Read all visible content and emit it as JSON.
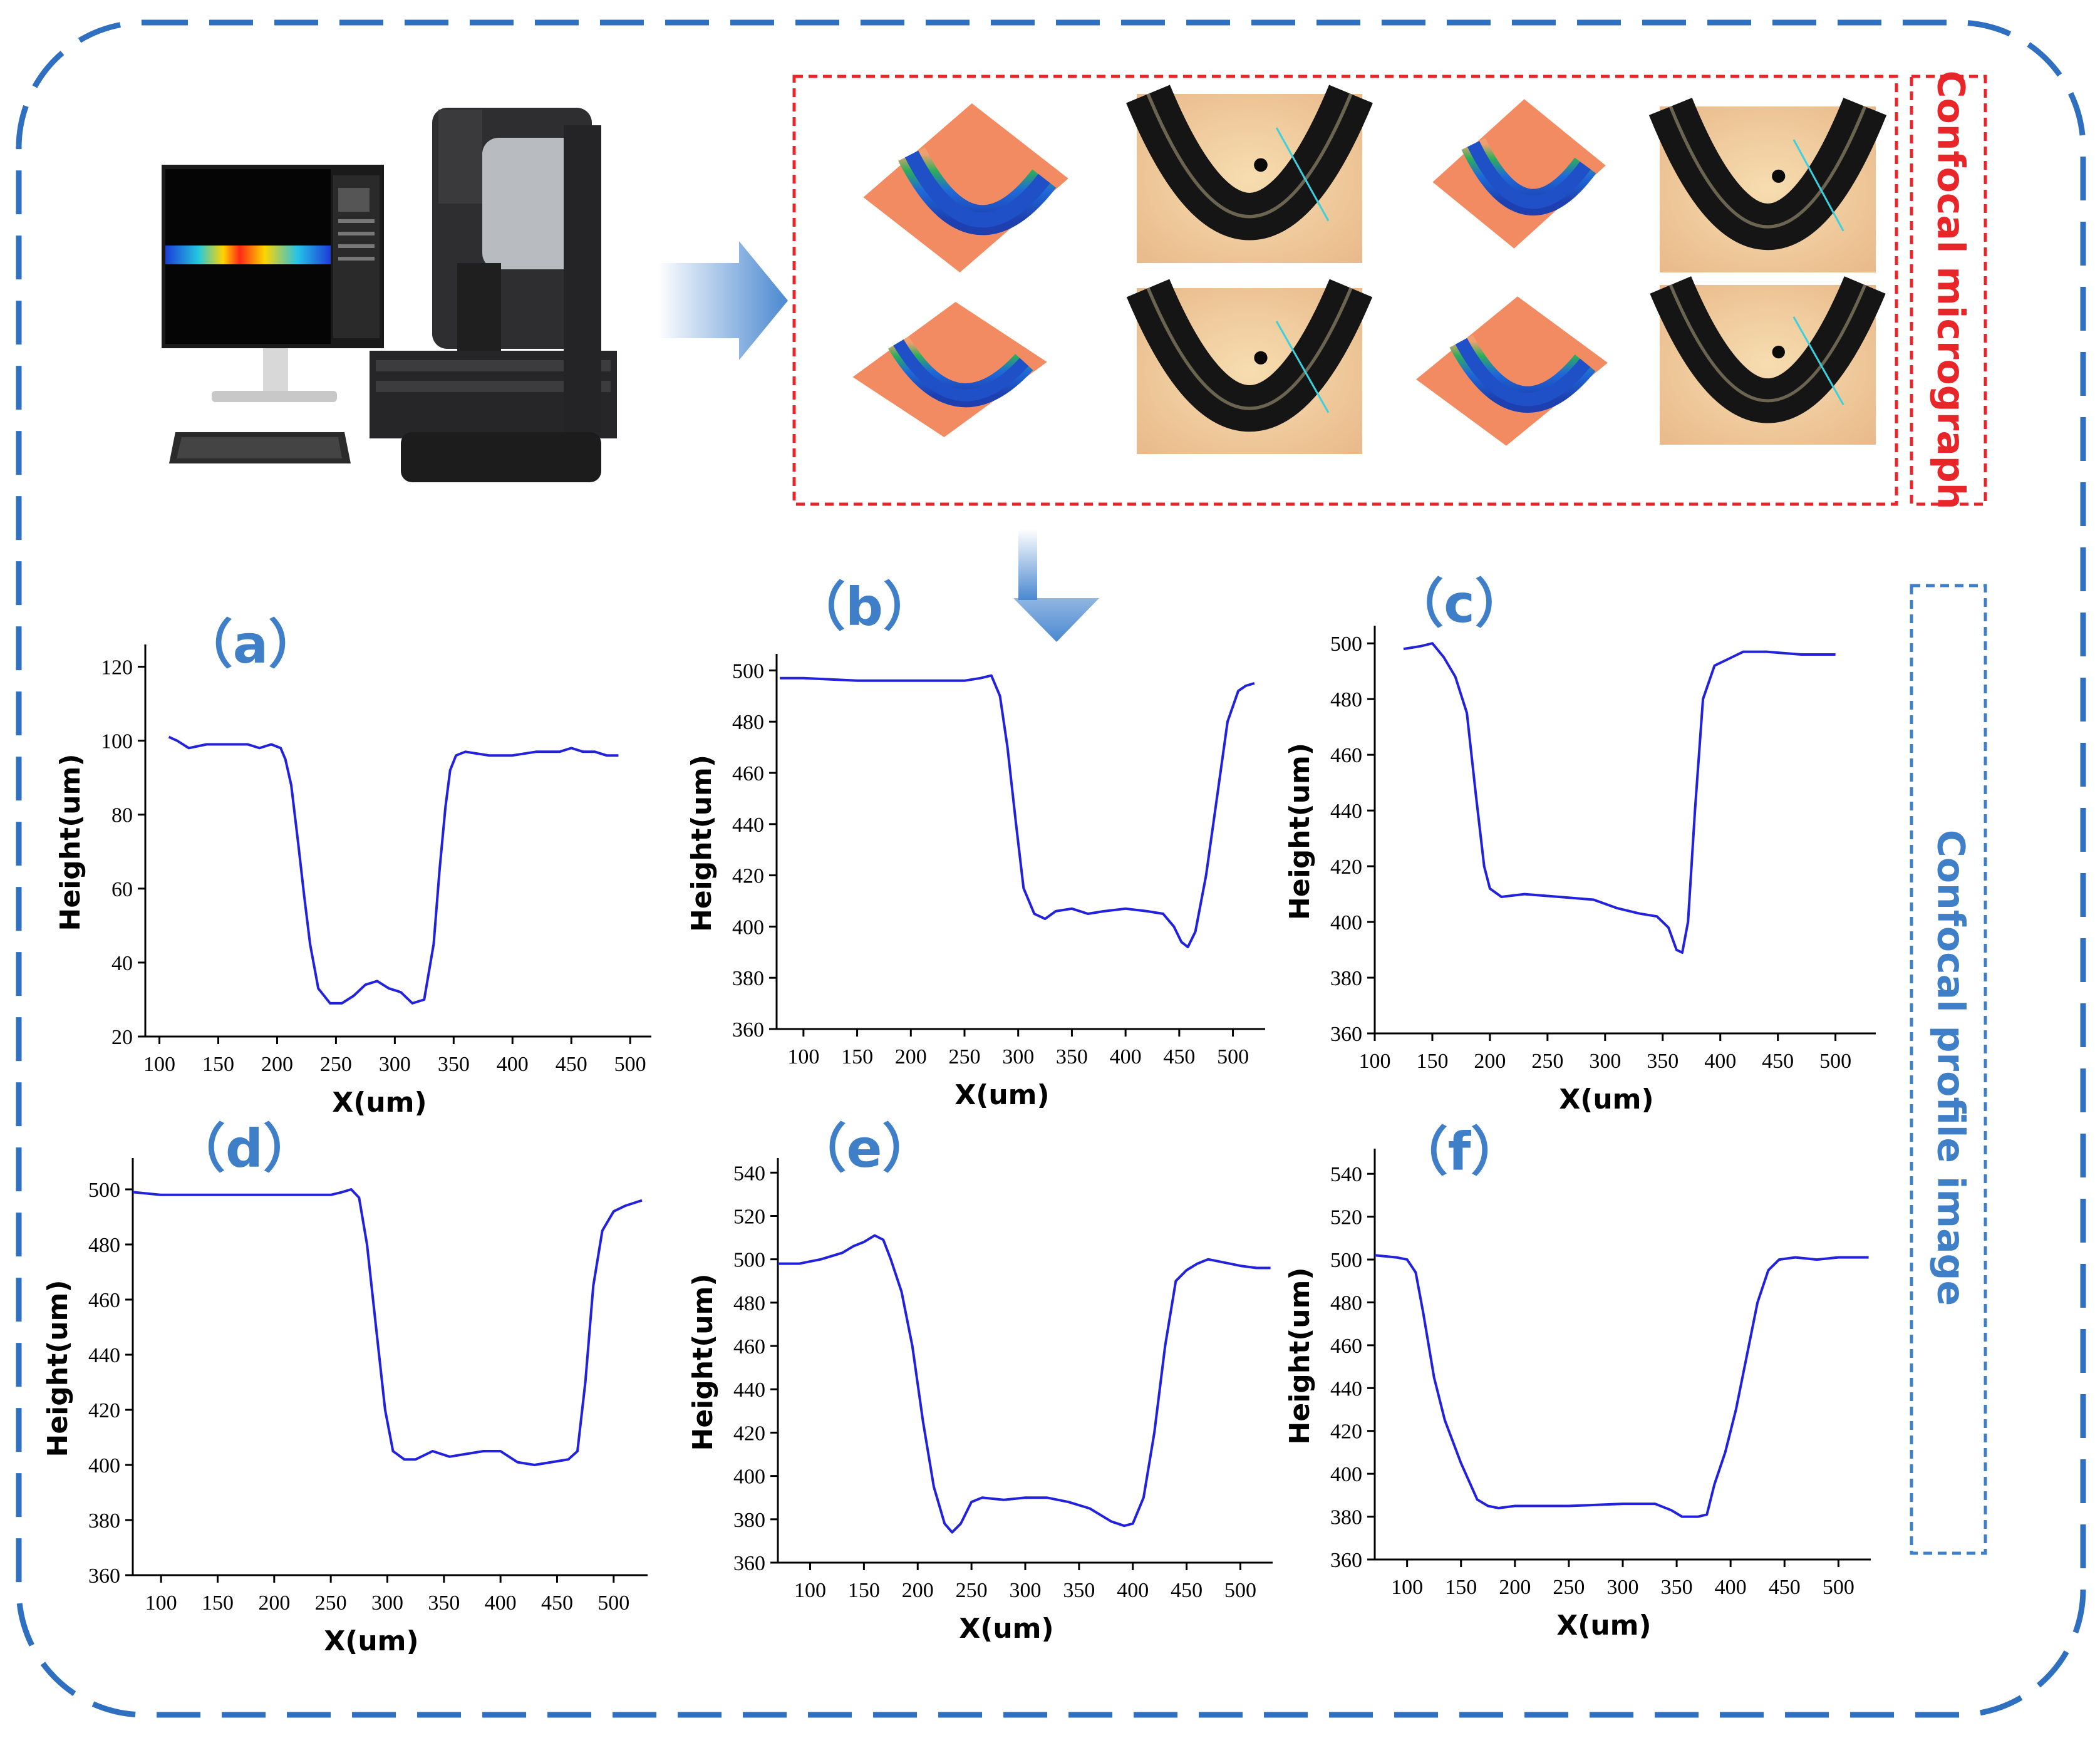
{
  "frame": {
    "top_label": "Confocal micrograph",
    "bottom_label": "Confocal profile image",
    "top_label_color": "#e8262a",
    "bottom_label_color": "#3f7fc8",
    "frame_color": "#2f6fbf"
  },
  "instrument": {
    "screen_icon": "monitor-with-heatmap-icon",
    "microscope_icon": "confocal-microscope-icon",
    "keyboard_icon": "keyboard-icon"
  },
  "micrographs": [
    {
      "kind": "3d-height-map"
    },
    {
      "kind": "optical-image"
    },
    {
      "kind": "3d-height-map"
    },
    {
      "kind": "optical-image"
    },
    {
      "kind": "3d-height-map"
    },
    {
      "kind": "optical-image"
    },
    {
      "kind": "3d-height-map"
    },
    {
      "kind": "optical-image"
    }
  ],
  "chart_data": [
    {
      "type": "line",
      "panel_label": "（a）",
      "title": "",
      "xlabel": "X(um)",
      "ylabel": "Height(um)",
      "xlim": [
        88,
        518
      ],
      "ylim": [
        20,
        125
      ],
      "xticks": [
        100,
        150,
        200,
        250,
        300,
        350,
        400,
        450,
        500
      ],
      "yticks": [
        20,
        40,
        60,
        80,
        100,
        120
      ],
      "line_color": "#2222dd",
      "grid": false,
      "series": [
        {
          "x": [
            108,
            115,
            125,
            140,
            160,
            175,
            185,
            195,
            203,
            207,
            212,
            218,
            223,
            228,
            235,
            245,
            255,
            265,
            275,
            285,
            295,
            305,
            315,
            325,
            333,
            338,
            343,
            347,
            352,
            360,
            380,
            400,
            420,
            440,
            450,
            460,
            470,
            480,
            490
          ],
          "y": [
            101,
            100,
            98,
            99,
            99,
            99,
            98,
            99,
            98,
            95,
            88,
            72,
            58,
            45,
            33,
            29,
            29,
            31,
            34,
            35,
            33,
            32,
            29,
            30,
            45,
            65,
            82,
            92,
            96,
            97,
            96,
            96,
            97,
            97,
            98,
            97,
            97,
            96,
            96
          ]
        }
      ]
    },
    {
      "type": "line",
      "panel_label": "（b）",
      "title": "",
      "xlabel": "X(um)",
      "ylabel": "Height(um)",
      "xlim": [
        75,
        530
      ],
      "ylim": [
        360,
        505
      ],
      "xticks": [
        100,
        150,
        200,
        250,
        300,
        350,
        400,
        450,
        500
      ],
      "yticks": [
        360,
        380,
        400,
        420,
        440,
        460,
        480,
        500
      ],
      "line_color": "#2222dd",
      "grid": false,
      "series": [
        {
          "x": [
            78,
            100,
            150,
            200,
            250,
            265,
            275,
            283,
            290,
            298,
            305,
            315,
            325,
            335,
            350,
            365,
            380,
            400,
            420,
            435,
            445,
            452,
            458,
            465,
            475,
            485,
            495,
            505,
            512,
            520
          ],
          "y": [
            497,
            497,
            496,
            496,
            496,
            497,
            498,
            490,
            470,
            440,
            415,
            405,
            403,
            406,
            407,
            405,
            406,
            407,
            406,
            405,
            400,
            394,
            392,
            398,
            420,
            450,
            480,
            492,
            494,
            495
          ]
        }
      ]
    },
    {
      "type": "line",
      "panel_label": "（c）",
      "title": "",
      "xlabel": "X(um)",
      "ylabel": "Height(um)",
      "xlim": [
        100,
        535
      ],
      "ylim": [
        360,
        505
      ],
      "xticks": [
        100,
        150,
        200,
        250,
        300,
        350,
        400,
        450,
        500
      ],
      "yticks": [
        360,
        380,
        400,
        420,
        440,
        460,
        480,
        500
      ],
      "line_color": "#2222dd",
      "grid": false,
      "series": [
        {
          "x": [
            125,
            140,
            150,
            160,
            170,
            180,
            188,
            195,
            200,
            210,
            230,
            260,
            290,
            310,
            330,
            345,
            355,
            362,
            367,
            372,
            378,
            385,
            395,
            410,
            420,
            440,
            470,
            500
          ],
          "y": [
            498,
            499,
            500,
            495,
            488,
            475,
            445,
            420,
            412,
            409,
            410,
            409,
            408,
            405,
            403,
            402,
            398,
            390,
            389,
            400,
            440,
            480,
            492,
            495,
            497,
            497,
            496,
            496
          ]
        }
      ]
    },
    {
      "type": "line",
      "panel_label": "（d）",
      "title": "",
      "xlabel": "X(um)",
      "ylabel": "Height(um)",
      "xlim": [
        75,
        530
      ],
      "ylim": [
        360,
        510
      ],
      "xticks": [
        100,
        150,
        200,
        250,
        300,
        350,
        400,
        450,
        500
      ],
      "yticks": [
        360,
        380,
        400,
        420,
        440,
        460,
        480,
        500
      ],
      "line_color": "#2222dd",
      "grid": false,
      "series": [
        {
          "x": [
            75,
            100,
            150,
            200,
            250,
            260,
            268,
            275,
            282,
            290,
            298,
            305,
            315,
            325,
            340,
            355,
            370,
            385,
            400,
            415,
            430,
            445,
            460,
            468,
            475,
            482,
            490,
            500,
            510,
            525
          ],
          "y": [
            499,
            498,
            498,
            498,
            498,
            499,
            500,
            497,
            480,
            450,
            420,
            405,
            402,
            402,
            405,
            403,
            404,
            405,
            405,
            401,
            400,
            401,
            402,
            405,
            430,
            465,
            485,
            492,
            494,
            496
          ]
        }
      ]
    },
    {
      "type": "line",
      "panel_label": "（e）",
      "title": "",
      "xlabel": "X(um)",
      "ylabel": "Height(um)",
      "xlim": [
        70,
        530
      ],
      "ylim": [
        360,
        545
      ],
      "xticks": [
        100,
        150,
        200,
        250,
        300,
        350,
        400,
        450,
        500
      ],
      "yticks": [
        360,
        380,
        400,
        420,
        440,
        460,
        480,
        500,
        520,
        540
      ],
      "line_color": "#2222dd",
      "grid": false,
      "series": [
        {
          "x": [
            70,
            90,
            110,
            130,
            140,
            150,
            160,
            168,
            175,
            185,
            195,
            205,
            215,
            225,
            232,
            240,
            250,
            260,
            280,
            300,
            320,
            340,
            360,
            380,
            392,
            400,
            410,
            420,
            430,
            440,
            450,
            460,
            470,
            480,
            490,
            500,
            515,
            528
          ],
          "y": [
            498,
            498,
            500,
            503,
            506,
            508,
            511,
            509,
            500,
            485,
            460,
            425,
            395,
            378,
            374,
            378,
            388,
            390,
            389,
            390,
            390,
            388,
            385,
            379,
            377,
            378,
            390,
            420,
            460,
            490,
            495,
            498,
            500,
            499,
            498,
            497,
            496,
            496
          ]
        }
      ]
    },
    {
      "type": "line",
      "panel_label": "（f）",
      "title": "",
      "xlabel": "X(um)",
      "ylabel": "Height(um)",
      "xlim": [
        70,
        530
      ],
      "ylim": [
        360,
        550
      ],
      "xticks": [
        100,
        150,
        200,
        250,
        300,
        350,
        400,
        450,
        500
      ],
      "yticks": [
        360,
        380,
        400,
        420,
        440,
        460,
        480,
        500,
        520,
        540
      ],
      "line_color": "#2222dd",
      "grid": false,
      "series": [
        {
          "x": [
            70,
            90,
            100,
            108,
            115,
            125,
            135,
            150,
            165,
            175,
            185,
            200,
            250,
            300,
            330,
            345,
            355,
            370,
            378,
            385,
            395,
            405,
            415,
            425,
            435,
            445,
            460,
            480,
            500,
            520,
            528
          ],
          "y": [
            502,
            501,
            500,
            494,
            475,
            445,
            425,
            405,
            388,
            385,
            384,
            385,
            385,
            386,
            386,
            383,
            380,
            380,
            381,
            395,
            410,
            430,
            455,
            480,
            495,
            500,
            501,
            500,
            501,
            501,
            501
          ]
        }
      ]
    }
  ]
}
